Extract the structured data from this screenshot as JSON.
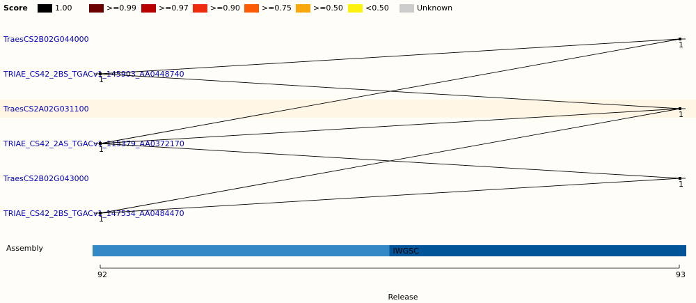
{
  "legend": {
    "title": "Score",
    "items": [
      {
        "label": "1.00",
        "color": "#000000"
      },
      {
        "label": ">=0.99",
        "color": "#6b0000"
      },
      {
        "label": ">=0.97",
        "color": "#b80000"
      },
      {
        "label": ">=0.90",
        "color": "#ee2a0f"
      },
      {
        "label": ">=0.75",
        "color": "#fb5b05"
      },
      {
        "label": ">=0.50",
        "color": "#f8a80d"
      },
      {
        "label": "<0.50",
        "color": "#fcf20e"
      },
      {
        "label": "Unknown",
        "color": "#cccccc"
      }
    ]
  },
  "rows": [
    {
      "label": "TraesCS2B02G044000",
      "highlight": false
    },
    {
      "label": "TRIAE_CS42_2BS_TGACv1_145903_AA0448740",
      "highlight": false
    },
    {
      "label": "TraesCS2A02G031100",
      "highlight": true
    },
    {
      "label": "TRIAE_CS42_2AS_TGACv1_115379_AA0372170",
      "highlight": false
    },
    {
      "label": "TraesCS2B02G043000",
      "highlight": false
    },
    {
      "label": "TRIAE_CS42_2BS_TGACv1_147534_AA0484470",
      "highlight": false
    }
  ],
  "assembly": {
    "label": "Assembly",
    "segments": [
      {
        "name": "",
        "color": "#3388c6",
        "from": 92,
        "to": 92.5
      },
      {
        "name": "IWGSC",
        "color": "#005497",
        "from": 92.5,
        "to": 93
      }
    ]
  },
  "axis": {
    "label": "Release",
    "ticks": [
      "92",
      "93"
    ]
  },
  "chart_data": {
    "type": "line",
    "title": "",
    "xlabel": "Release",
    "ylabel": "",
    "x": [
      "92",
      "93"
    ],
    "nodes": [
      {
        "release": "92",
        "row": 1,
        "score": "1"
      },
      {
        "release": "92",
        "row": 3,
        "score": "1"
      },
      {
        "release": "92",
        "row": 5,
        "score": "1"
      },
      {
        "release": "93",
        "row": 0,
        "score": "1"
      },
      {
        "release": "93",
        "row": 2,
        "score": "1"
      },
      {
        "release": "93",
        "row": 4,
        "score": "1"
      }
    ],
    "links": [
      {
        "from_row": 1,
        "to_row": 0,
        "score": 1.0
      },
      {
        "from_row": 1,
        "to_row": 2,
        "score": 1.0
      },
      {
        "from_row": 3,
        "to_row": 0,
        "score": 1.0
      },
      {
        "from_row": 3,
        "to_row": 2,
        "score": 1.0
      },
      {
        "from_row": 3,
        "to_row": 4,
        "score": 1.0
      },
      {
        "from_row": 5,
        "to_row": 2,
        "score": 1.0
      },
      {
        "from_row": 5,
        "to_row": 4,
        "score": 1.0
      }
    ]
  }
}
